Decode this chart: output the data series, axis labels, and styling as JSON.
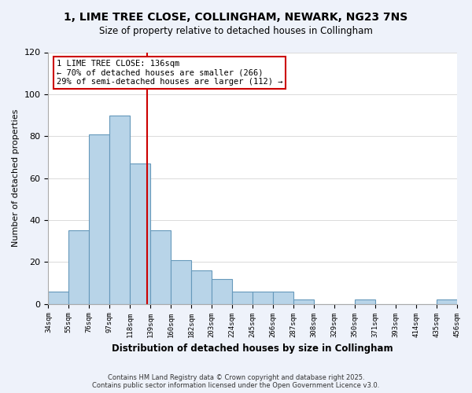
{
  "title": "1, LIME TREE CLOSE, COLLINGHAM, NEWARK, NG23 7NS",
  "subtitle": "Size of property relative to detached houses in Collingham",
  "xlabel": "Distribution of detached houses by size in Collingham",
  "ylabel": "Number of detached properties",
  "bar_values": [
    6,
    35,
    81,
    90,
    67,
    35,
    21,
    16,
    12,
    6,
    6,
    6,
    2,
    0,
    0,
    2,
    0,
    0,
    0,
    2
  ],
  "bar_labels": [
    "34sqm",
    "55sqm",
    "76sqm",
    "97sqm",
    "118sqm",
    "139sqm",
    "160sqm",
    "182sqm",
    "203sqm",
    "224sqm",
    "245sqm",
    "266sqm",
    "287sqm",
    "308sqm",
    "329sqm",
    "350sqm",
    "371sqm",
    "393sqm",
    "414sqm",
    "435sqm",
    "456sqm"
  ],
  "bar_color": "#b8d4e8",
  "bar_edge_color": "#6699bb",
  "vline_color": "#cc0000",
  "annotation_title": "1 LIME TREE CLOSE: 136sqm",
  "annotation_line1": "← 70% of detached houses are smaller (266)",
  "annotation_line2": "29% of semi-detached houses are larger (112) →",
  "ylim": [
    0,
    120
  ],
  "yticks": [
    0,
    20,
    40,
    60,
    80,
    100,
    120
  ],
  "footnote1": "Contains HM Land Registry data © Crown copyright and database right 2025.",
  "footnote2": "Contains public sector information licensed under the Open Government Licence v3.0.",
  "bg_color": "#eef2fa",
  "plot_bg_color": "#ffffff"
}
